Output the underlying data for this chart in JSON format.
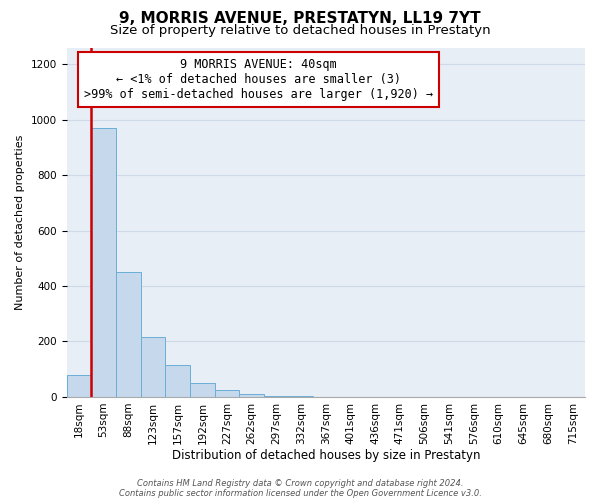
{
  "title": "9, MORRIS AVENUE, PRESTATYN, LL19 7YT",
  "subtitle": "Size of property relative to detached houses in Prestatyn",
  "xlabel": "Distribution of detached houses by size in Prestatyn",
  "ylabel": "Number of detached properties",
  "bar_labels": [
    "18sqm",
    "53sqm",
    "88sqm",
    "123sqm",
    "157sqm",
    "192sqm",
    "227sqm",
    "262sqm",
    "297sqm",
    "332sqm",
    "367sqm",
    "401sqm",
    "436sqm",
    "471sqm",
    "506sqm",
    "541sqm",
    "576sqm",
    "610sqm",
    "645sqm",
    "680sqm",
    "715sqm"
  ],
  "bar_heights": [
    80,
    970,
    450,
    215,
    115,
    50,
    25,
    12,
    5,
    2,
    1,
    0,
    0,
    0,
    0,
    0,
    0,
    0,
    0,
    0,
    0
  ],
  "bar_color": "#c5d8ec",
  "bar_edgecolor": "#6aaed6",
  "bar_linewidth": 0.7,
  "ylim": [
    0,
    1260
  ],
  "yticks": [
    0,
    200,
    400,
    600,
    800,
    1000,
    1200
  ],
  "red_line_color": "#cc0000",
  "annotation_line1": "9 MORRIS AVENUE: 40sqm",
  "annotation_line2": "← <1% of detached houses are smaller (3)",
  "annotation_line3": ">99% of semi-detached houses are larger (1,920) →",
  "annotation_box_facecolor": "#ffffff",
  "annotation_box_edgecolor": "#cc0000",
  "grid_color": "#cdd8e8",
  "plot_bg_color": "#e8eef5",
  "footer_line1": "Contains HM Land Registry data © Crown copyright and database right 2024.",
  "footer_line2": "Contains public sector information licensed under the Open Government Licence v3.0.",
  "title_fontsize": 11,
  "subtitle_fontsize": 9.5,
  "annotation_fontsize": 8.5,
  "xlabel_fontsize": 8.5,
  "ylabel_fontsize": 8.0,
  "tick_fontsize": 7.5,
  "footer_fontsize": 6.0
}
